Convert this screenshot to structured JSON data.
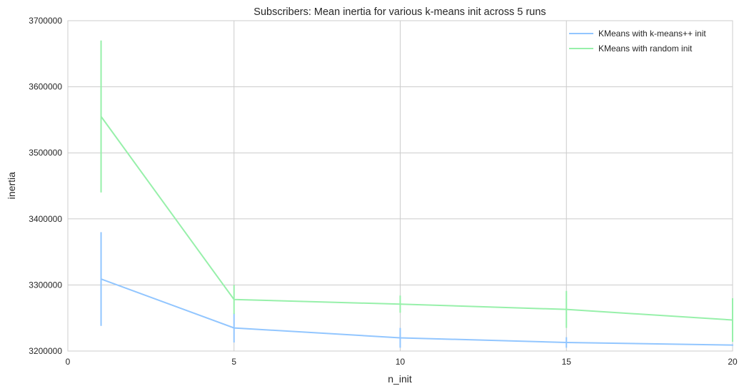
{
  "chart_data": {
    "type": "line",
    "title": "Subscribers: Mean inertia for various k-means init across 5 runs",
    "xlabel": "n_init",
    "ylabel": "inertia",
    "xlim": [
      0,
      20
    ],
    "ylim": [
      3200000,
      3700000
    ],
    "xticks": [
      "0",
      "5",
      "10",
      "15",
      "20"
    ],
    "yticks": [
      "3200000",
      "3300000",
      "3400000",
      "3500000",
      "3600000",
      "3700000"
    ],
    "grid": true,
    "legend_position": "top-right",
    "x": [
      1,
      5,
      10,
      15,
      20
    ],
    "series": [
      {
        "name": "KMeans with k-means++ init",
        "color": "#92c6ff",
        "values": [
          3309000,
          3235000,
          3220000,
          3213000,
          3209000
        ],
        "error": [
          71000,
          22000,
          15000,
          8000,
          1000
        ]
      },
      {
        "name": "KMeans with random init",
        "color": "#97f0aa",
        "values": [
          3555000,
          3278000,
          3271000,
          3263000,
          3247000
        ],
        "error": [
          115000,
          22000,
          13000,
          28000,
          33000
        ]
      }
    ]
  }
}
